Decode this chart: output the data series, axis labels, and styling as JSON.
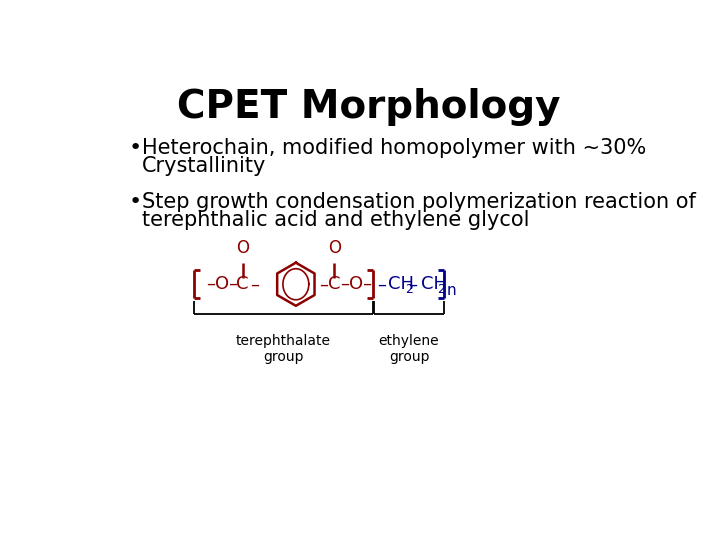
{
  "title": "CPET Morphology",
  "bullet1_line1": "Heterochain, modified homopolymer with ~30%",
  "bullet1_line2": "Crystallinity",
  "bullet2_line1": "Step growth condensation polymerization reaction of",
  "bullet2_line2": "terephthalic acid and ethylene glycol",
  "label1": "terephthalate\ngroup",
  "label2": "ethylene\ngroup",
  "bg_color": "#ffffff",
  "text_color": "#000000",
  "red_color": "#8b0000",
  "blue_color": "#00008b",
  "title_fontsize": 28,
  "bullet_fontsize": 15,
  "label_fontsize": 10
}
